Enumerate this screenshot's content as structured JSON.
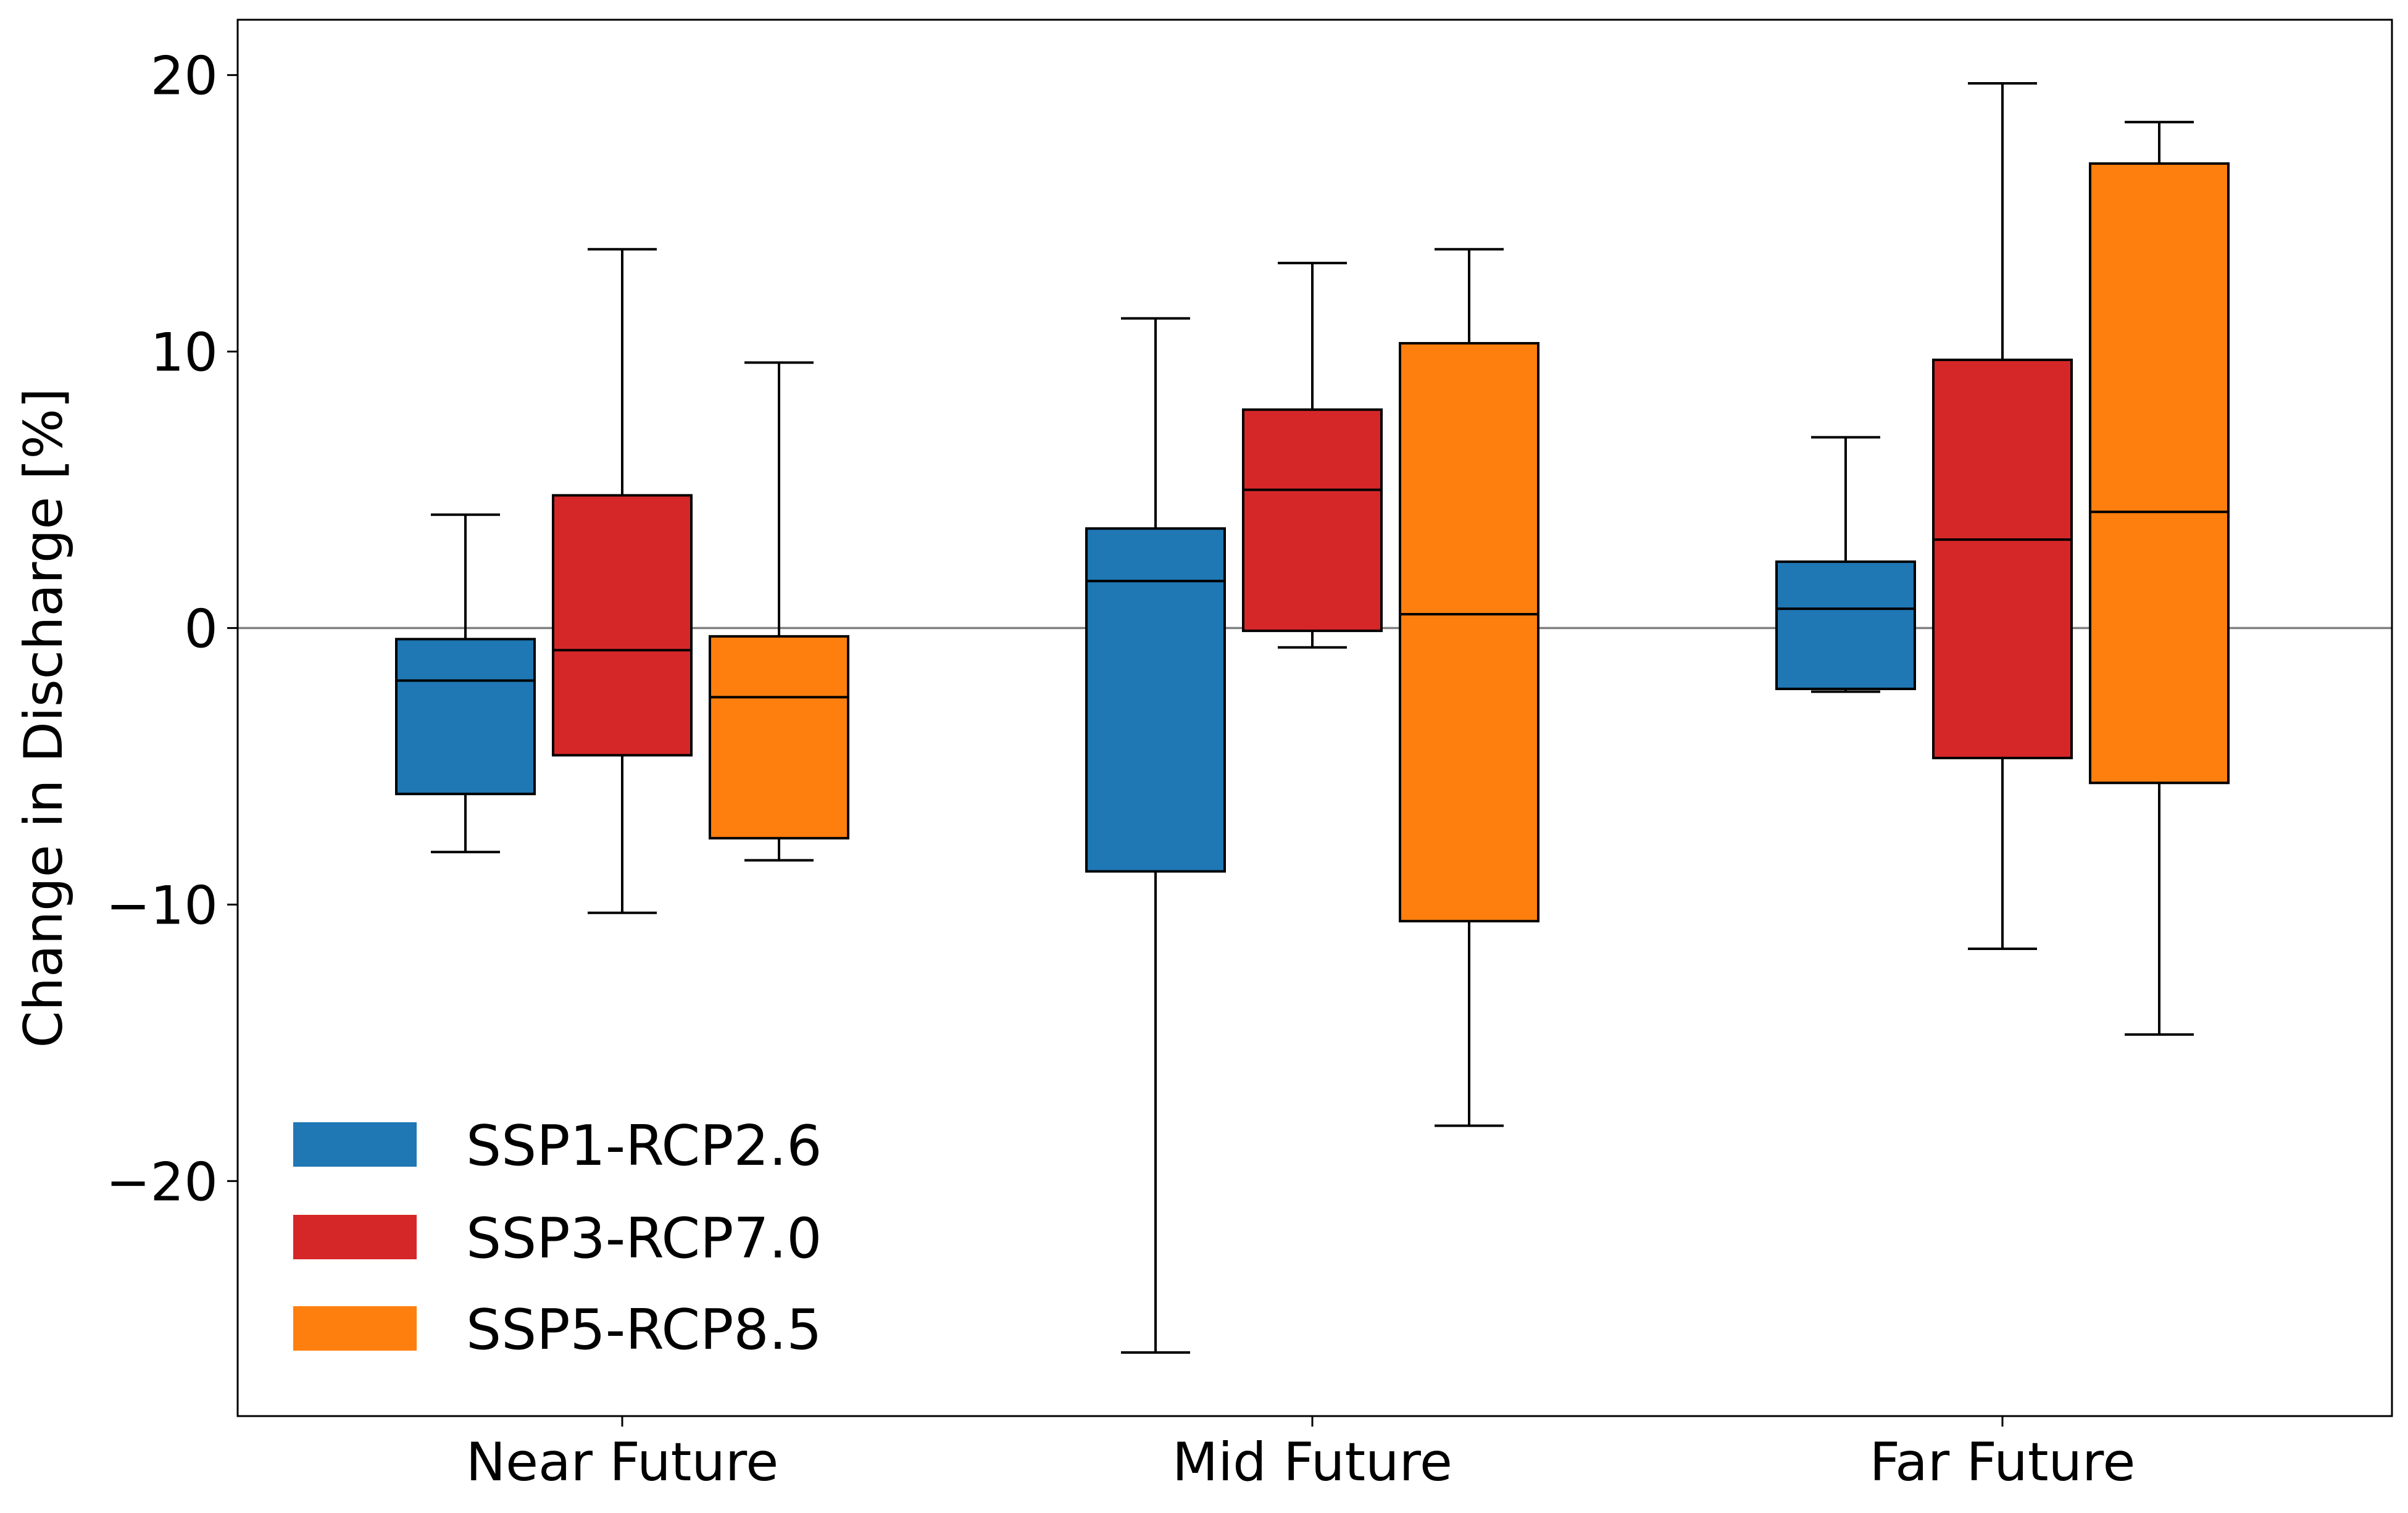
{
  "chart_data": {
    "type": "box",
    "title": "",
    "xlabel": "",
    "ylabel": "Change in Discharge [%]",
    "ylim": [
      -28.5,
      22
    ],
    "yticks": [
      20,
      10,
      0,
      -10,
      -20
    ],
    "ytick_labels": [
      "20",
      "10",
      "0",
      "−10",
      "−20"
    ],
    "categories": [
      "Near Future",
      "Mid Future",
      "Far Future"
    ],
    "reference_line": 0,
    "grid": false,
    "legend_position": "lower-left",
    "series": [
      {
        "name": "SSP1-RCP2.6",
        "color": "#1f77b4",
        "boxes": [
          {
            "whislo": -8.1,
            "q1": -6.0,
            "med": -1.9,
            "q3": -0.4,
            "whishi": 4.1
          },
          {
            "whislo": -26.2,
            "q1": -8.8,
            "med": 1.7,
            "q3": 3.6,
            "whishi": 11.2
          },
          {
            "whislo": -2.3,
            "q1": -2.2,
            "med": 0.7,
            "q3": 2.4,
            "whishi": 6.9
          }
        ]
      },
      {
        "name": "SSP3-RCP7.0",
        "color": "#d62728",
        "boxes": [
          {
            "whislo": -10.3,
            "q1": -4.6,
            "med": -0.8,
            "q3": 4.8,
            "whishi": 13.7
          },
          {
            "whislo": -0.7,
            "q1": -0.1,
            "med": 5.0,
            "q3": 7.9,
            "whishi": 13.2
          },
          {
            "whislo": -11.6,
            "q1": -4.7,
            "med": 3.2,
            "q3": 9.7,
            "whishi": 19.7
          }
        ]
      },
      {
        "name": "SSP5-RCP8.5",
        "color": "#ff7f0e",
        "boxes": [
          {
            "whislo": -8.4,
            "q1": -7.6,
            "med": -2.5,
            "q3": -0.3,
            "whishi": 9.6
          },
          {
            "whislo": -18.0,
            "q1": -10.6,
            "med": 0.5,
            "q3": 10.3,
            "whishi": 13.7
          },
          {
            "whislo": -14.7,
            "q1": -5.6,
            "med": 4.2,
            "q3": 16.8,
            "whishi": 18.3
          }
        ]
      }
    ]
  }
}
